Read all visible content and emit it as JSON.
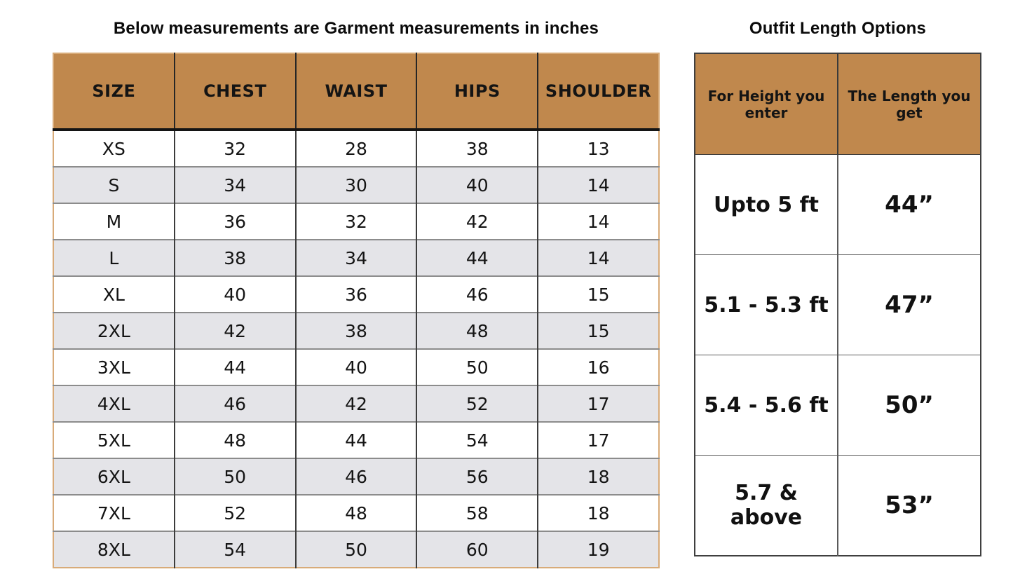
{
  "colors": {
    "header_brown": "#c0884d",
    "alt_row_gray": "#e4e4e8",
    "left_table_outer_border_tan": "#d8ab79",
    "right_table_outer_border_gray": "#3f3f3f",
    "header_underline_black": "#141414",
    "row_divider_gray": "#8c8c8c",
    "background": "#ffffff"
  },
  "chart_data": [
    {
      "type": "table",
      "title": "Below measurements are Garment measurements in inches",
      "columns": [
        "SIZE",
        "CHEST",
        "WAIST",
        "HIPS",
        "SHOULDER"
      ],
      "rows": [
        [
          "XS",
          "32",
          "28",
          "38",
          "13"
        ],
        [
          "S",
          "34",
          "30",
          "40",
          "14"
        ],
        [
          "M",
          "36",
          "32",
          "42",
          "14"
        ],
        [
          "L",
          "38",
          "34",
          "44",
          "14"
        ],
        [
          "XL",
          "40",
          "36",
          "46",
          "15"
        ],
        [
          "2XL",
          "42",
          "38",
          "48",
          "15"
        ],
        [
          "3XL",
          "44",
          "40",
          "50",
          "16"
        ],
        [
          "4XL",
          "46",
          "42",
          "52",
          "17"
        ],
        [
          "5XL",
          "48",
          "44",
          "54",
          "17"
        ],
        [
          "6XL",
          "50",
          "46",
          "56",
          "18"
        ],
        [
          "7XL",
          "52",
          "48",
          "58",
          "18"
        ],
        [
          "8XL",
          "54",
          "50",
          "60",
          "19"
        ]
      ],
      "layout": {
        "header_bg": "#c0884d",
        "striped_rows": true,
        "units": "inches"
      }
    },
    {
      "type": "table",
      "title": "Outfit Length Options",
      "columns": [
        "For Height you enter",
        "The Length you get"
      ],
      "rows": [
        [
          "Upto 5 ft",
          "44”"
        ],
        [
          "5.1 - 5.3 ft",
          "47”"
        ],
        [
          "5.4 - 5.6 ft",
          "50”"
        ],
        [
          "5.7 & above",
          "53”"
        ]
      ],
      "layout": {
        "header_bg": "#c0884d",
        "striped_rows": false
      }
    }
  ]
}
